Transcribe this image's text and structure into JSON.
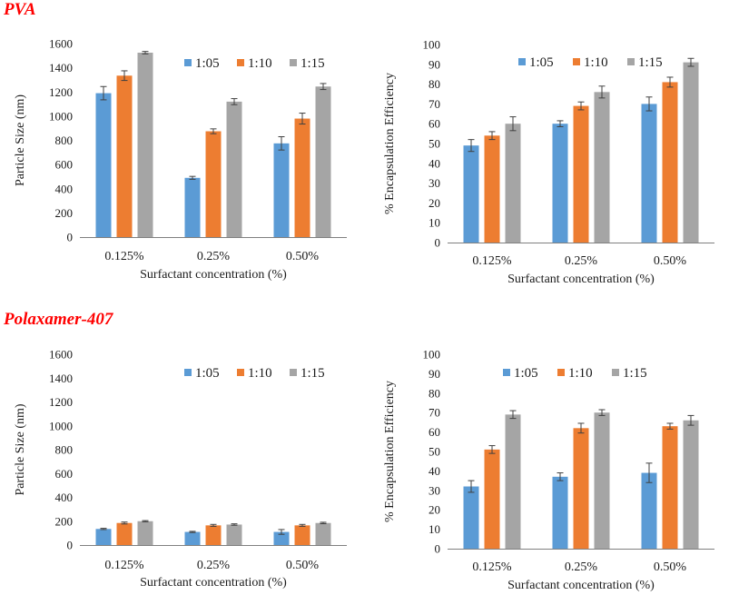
{
  "sections": {
    "pva": "PVA",
    "polaxamer": "Polaxamer-407"
  },
  "colors": {
    "series_1_05": "#5b9bd5",
    "series_1_10": "#ed7d31",
    "series_1_15": "#a5a5a5",
    "axis": "#808080",
    "error_bar": "#404040",
    "section_title": "#ff0000"
  },
  "chart_data": [
    {
      "id": "pva-size",
      "type": "bar",
      "title": "",
      "xlabel": "Surfactant concentration (%)",
      "ylabel": "Particle Size (nm)",
      "categories": [
        "0.125%",
        "0.25%",
        "0.50%"
      ],
      "ylim": [
        0,
        1600
      ],
      "yticks": [
        0,
        200,
        400,
        600,
        800,
        1000,
        1200,
        1400,
        1600
      ],
      "legend": "top-right",
      "series": [
        {
          "name": "1:05",
          "values": [
            1190,
            490,
            775
          ],
          "errors": [
            55,
            12,
            55
          ]
        },
        {
          "name": "1:10",
          "values": [
            1335,
            875,
            980
          ],
          "errors": [
            40,
            20,
            45
          ]
        },
        {
          "name": "1:15",
          "values": [
            1525,
            1120,
            1245
          ],
          "errors": [
            10,
            25,
            25
          ]
        }
      ]
    },
    {
      "id": "pva-ee",
      "type": "bar",
      "title": "",
      "xlabel": "Surfactant concentration (%)",
      "ylabel": "% Encapsulation  Efficiency",
      "categories": [
        "0.125%",
        "0.25%",
        "0.50%"
      ],
      "ylim": [
        0,
        100
      ],
      "yticks": [
        0,
        10,
        20,
        30,
        40,
        50,
        60,
        70,
        80,
        90,
        100
      ],
      "legend": "top-right",
      "series": [
        {
          "name": "1:05",
          "values": [
            49,
            60,
            70
          ],
          "errors": [
            3,
            1.5,
            3.5
          ]
        },
        {
          "name": "1:10",
          "values": [
            54,
            69,
            81
          ],
          "errors": [
            2,
            2,
            2.5
          ]
        },
        {
          "name": "1:15",
          "values": [
            60,
            76,
            91
          ],
          "errors": [
            3.5,
            3,
            2
          ]
        }
      ]
    },
    {
      "id": "polaxamer-size",
      "type": "bar",
      "title": "",
      "xlabel": "Surfactant concentration (%)",
      "ylabel": "Particle Size (nm)",
      "categories": [
        "0.125%",
        "0.25%",
        "0.50%"
      ],
      "ylim": [
        0,
        1600
      ],
      "yticks": [
        0,
        200,
        400,
        600,
        800,
        1000,
        1200,
        1400,
        1600
      ],
      "legend": "top-right",
      "series": [
        {
          "name": "1:05",
          "values": [
            135,
            110,
            110
          ],
          "errors": [
            5,
            5,
            20
          ]
        },
        {
          "name": "1:10",
          "values": [
            185,
            165,
            165
          ],
          "errors": [
            8,
            8,
            8
          ]
        },
        {
          "name": "1:15",
          "values": [
            200,
            172,
            185
          ],
          "errors": [
            5,
            6,
            6
          ]
        }
      ]
    },
    {
      "id": "polaxamer-ee",
      "type": "bar",
      "title": "",
      "xlabel": "Surfactant concentration (%)",
      "ylabel": "% Encapsulation  Efficiency",
      "categories": [
        "0.125%",
        "0.25%",
        "0.50%"
      ],
      "ylim": [
        0,
        100
      ],
      "yticks": [
        0,
        10,
        20,
        30,
        40,
        50,
        60,
        70,
        80,
        90,
        100
      ],
      "legend": "top-right",
      "series": [
        {
          "name": "1:05",
          "values": [
            32,
            37,
            39
          ],
          "errors": [
            3,
            2,
            5
          ]
        },
        {
          "name": "1:10",
          "values": [
            51,
            62,
            63
          ],
          "errors": [
            2,
            2.5,
            1.5
          ]
        },
        {
          "name": "1:15",
          "values": [
            69,
            70,
            66
          ],
          "errors": [
            2,
            1.5,
            2.5
          ]
        }
      ]
    }
  ]
}
